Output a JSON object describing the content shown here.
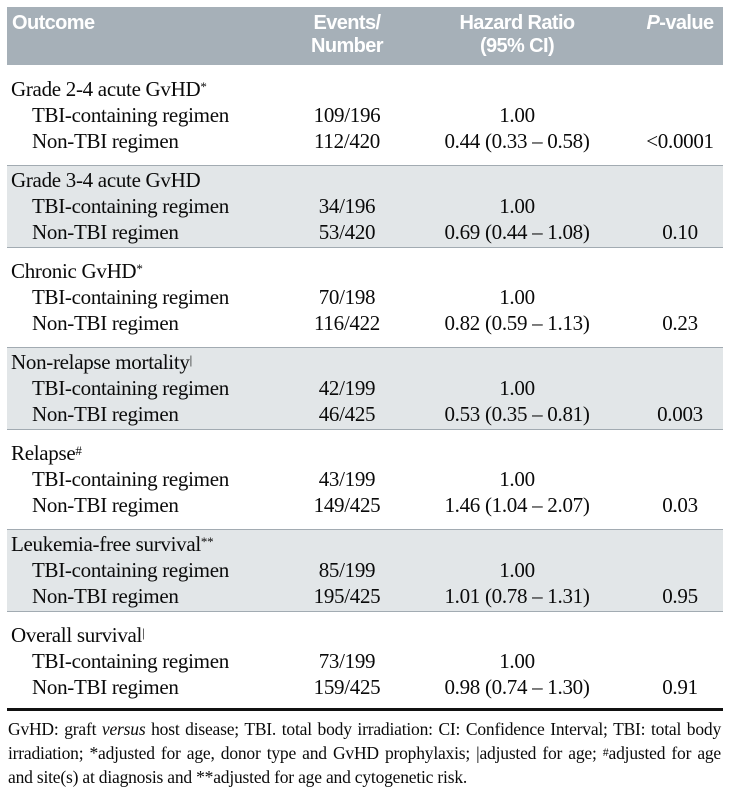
{
  "header": {
    "outcome": "Outcome",
    "events_line1": "Events/",
    "events_line2": "Number",
    "hazard_line1": "Hazard Ratio",
    "hazard_line2": "(95% CI)",
    "pvalue_italic": "P",
    "pvalue_rest": "-value"
  },
  "colors": {
    "header_bg": "#a6b0b8",
    "shaded_section_bg": "#e2e6e8",
    "section_border": "#a2abb2",
    "bottom_rule": "#111111",
    "header_text": "#ffffff"
  },
  "sections": [
    {
      "title": "Grade 2-4 acute GvHD",
      "sup": "*",
      "shaded": false,
      "rows": [
        {
          "label": "TBI-containing regimen",
          "events": "109/196",
          "hazard": "1.00",
          "p": ""
        },
        {
          "label": "Non-TBI regimen",
          "events": "112/420",
          "hazard": "0.44 (0.33 – 0.58)",
          "p": "<0.0001"
        }
      ]
    },
    {
      "title": "Grade 3-4 acute GvHD",
      "sup": "",
      "shaded": true,
      "rows": [
        {
          "label": "TBI-containing regimen",
          "events": "34/196",
          "hazard": "1.00",
          "p": ""
        },
        {
          "label": "Non-TBI regimen",
          "events": "53/420",
          "hazard": "0.69 (0.44 – 1.08)",
          "p": "0.10"
        }
      ]
    },
    {
      "title": "Chronic GvHD",
      "sup": "*",
      "shaded": false,
      "rows": [
        {
          "label": "TBI-containing regimen",
          "events": "70/198",
          "hazard": "1.00",
          "p": ""
        },
        {
          "label": "Non-TBI regimen",
          "events": "116/422",
          "hazard": "0.82 (0.59 – 1.13)",
          "p": "0.23"
        }
      ]
    },
    {
      "title": "Non-relapse mortality",
      "sup": "|",
      "shaded": true,
      "rows": [
        {
          "label": "TBI-containing regimen",
          "events": "42/199",
          "hazard": "1.00",
          "p": ""
        },
        {
          "label": "Non-TBI regimen",
          "events": "46/425",
          "hazard": "0.53 (0.35 – 0.81)",
          "p": "0.003"
        }
      ]
    },
    {
      "title": "Relapse",
      "sup": "#",
      "shaded": false,
      "rows": [
        {
          "label": "TBI-containing regimen",
          "events": "43/199",
          "hazard": "1.00",
          "p": ""
        },
        {
          "label": "Non-TBI regimen",
          "events": "149/425",
          "hazard": "1.46 (1.04 – 2.07)",
          "p": "0.03"
        }
      ]
    },
    {
      "title": "Leukemia-free survival",
      "sup": "**",
      "shaded": true,
      "rows": [
        {
          "label": "TBI-containing regimen",
          "events": "85/199",
          "hazard": "1.00",
          "p": ""
        },
        {
          "label": "Non-TBI regimen",
          "events": "195/425",
          "hazard": "1.01 (0.78 – 1.31)",
          "p": "0.95"
        }
      ]
    },
    {
      "title": "Overall survival",
      "sup": "|",
      "shaded": false,
      "rows": [
        {
          "label": "TBI-containing regimen",
          "events": "73/199",
          "hazard": "1.00",
          "p": ""
        },
        {
          "label": "Non-TBI regimen",
          "events": "159/425",
          "hazard": "0.98 (0.74 – 1.30)",
          "p": "0.91"
        }
      ]
    }
  ],
  "footnote": {
    "part1": "GvHD: graft ",
    "versus": "versus",
    "part2": " host disease; TBI. total body irradiation: CI: Confidence Interval; TBI: total body irradiation; *adjusted for age, donor type and GvHD prophylaxis; ",
    "bar": "|",
    "part3": "adjusted for age; ",
    "hash": "#",
    "part4": "adjusted for age and site(s) at diagnosis and **adjusted for age and cytogenetic risk."
  }
}
